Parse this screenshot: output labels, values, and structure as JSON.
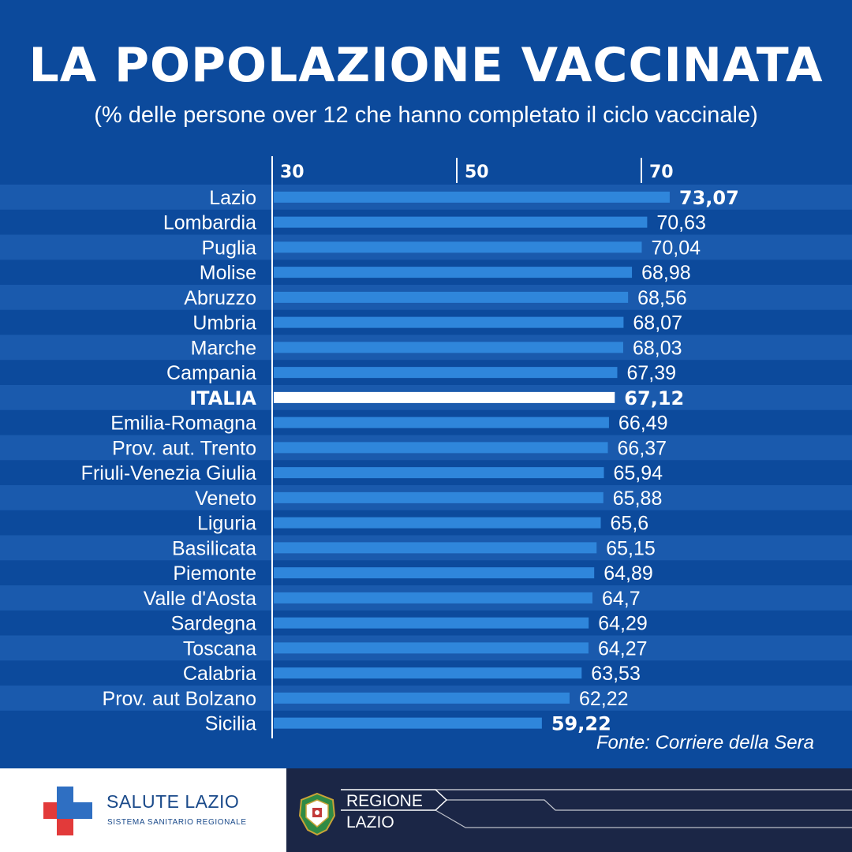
{
  "chart_data": {
    "type": "bar",
    "orientation": "horizontal",
    "title": "LA POPOLAZIONE VACCINATA",
    "subtitle": "(% delle persone over 12 che hanno completato il ciclo vaccinale)",
    "x_ticks": [
      {
        "value": 30,
        "label": "30"
      },
      {
        "value": 50,
        "label": "50"
      },
      {
        "value": 70,
        "label": "70"
      }
    ],
    "xlim": [
      30,
      80
    ],
    "categories": [
      "Lazio",
      "Lombardia",
      "Puglia",
      "Molise",
      "Abruzzo",
      "Umbria",
      "Marche",
      "Campania",
      "ITALIA",
      "Emilia-Romagna",
      "Prov. aut. Trento",
      "Friuli-Venezia Giulia",
      "Veneto",
      "Liguria",
      "Basilicata",
      "Piemonte",
      "Valle d'Aosta",
      "Sardegna",
      "Toscana",
      "Calabria",
      "Prov. aut Bolzano",
      "Sicilia"
    ],
    "values": [
      73.07,
      70.63,
      70.04,
      68.98,
      68.56,
      68.07,
      68.03,
      67.39,
      67.12,
      66.49,
      66.37,
      65.94,
      65.88,
      65.6,
      65.15,
      64.89,
      64.7,
      64.29,
      64.27,
      63.53,
      62.22,
      59.22
    ],
    "value_labels": [
      "73,07",
      "70,63",
      "70,04",
      "68,98",
      "68,56",
      "68,07",
      "68,03",
      "67,39",
      "67,12",
      "66,49",
      "66,37",
      "65,94",
      "65,88",
      "65,6",
      "65,15",
      "64,89",
      "64,7",
      "64,29",
      "64,27",
      "63,53",
      "62,22",
      "59,22"
    ],
    "highlighted_category": "ITALIA",
    "bold_value_categories": [
      "Lazio",
      "ITALIA",
      "Sicilia"
    ],
    "grid": false,
    "source": "Fonte: Corriere della Sera"
  },
  "colors": {
    "background": "#0c4a9c",
    "row_stripe": "#1a5aad",
    "bar": "#2f86db",
    "bar_highlight": "#ffffff",
    "text": "#ffffff",
    "footer_dark": "#1b2646",
    "footer_light": "#ffffff",
    "cross_blue": "#2f6fc2",
    "cross_red": "#e23a3a"
  },
  "footer": {
    "salute_name": "SALUTE LAZIO",
    "salute_sub": "SISTEMA SANITARIO REGIONALE",
    "regione_line1": "REGIONE",
    "regione_line2": "LAZIO",
    "salute_icon": "cross-icon",
    "regione_icon": "coat-of-arms-icon"
  }
}
